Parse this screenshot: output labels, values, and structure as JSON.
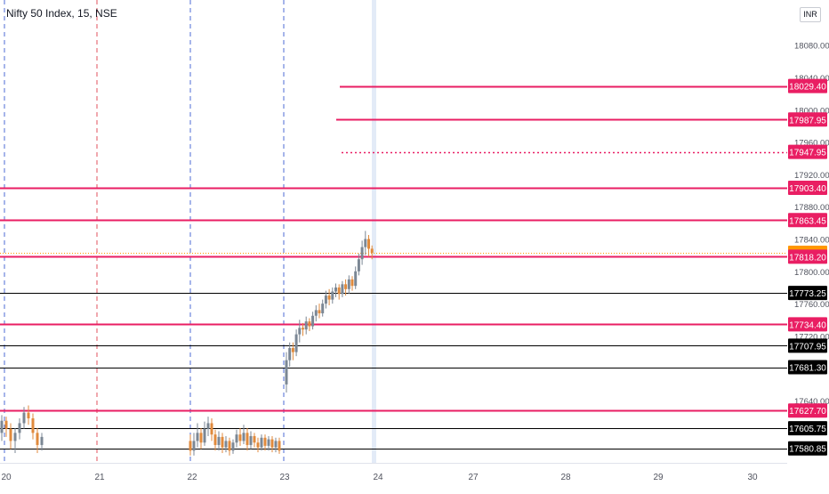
{
  "header": {
    "title": "Nifty 50 Index, 15, NSE"
  },
  "currency_button": {
    "label": "INR"
  },
  "colors": {
    "support": "#e91e63",
    "level_black": "#000000",
    "current_price": "#ff9800",
    "candle_up": "#7b8794",
    "candle_down": "#e08a3c",
    "session_line_blue": "#4d6bd6",
    "session_line_red": "#e0525d"
  },
  "chart_data": {
    "type": "candlestick",
    "title": "Nifty 50 Index, 15, NSE",
    "ylim": [
      17570,
      18120
    ],
    "y_ticks": [
      "18080.00",
      "18040.00",
      "18000.00",
      "17960.00",
      "17920.00",
      "17880.00",
      "17840.00",
      "17800.00",
      "17760.00",
      "17720.00",
      "17640.00"
    ],
    "x_ticks": [
      "20",
      "21",
      "22",
      "23",
      "24",
      "27",
      "28",
      "29",
      "30"
    ],
    "price_levels": [
      {
        "label": "18029.40",
        "value": 18029.4,
        "color": "pink",
        "style": "solid"
      },
      {
        "label": "17987.95",
        "value": 17987.95,
        "color": "pink",
        "style": "solid"
      },
      {
        "label": "17947.95",
        "value": 17947.95,
        "color": "pink",
        "style": "dotted"
      },
      {
        "label": "17903.40",
        "value": 17903.4,
        "color": "pink",
        "style": "solid"
      },
      {
        "label": "17863.45",
        "value": 17863.45,
        "color": "pink",
        "style": "solid"
      },
      {
        "label": "17822.95",
        "value": 17822.95,
        "color": "orange",
        "style": "current"
      },
      {
        "label": "17818.20",
        "value": 17818.2,
        "color": "pink",
        "style": "solid"
      },
      {
        "label": "17773.25",
        "value": 17773.25,
        "color": "black",
        "style": "solid"
      },
      {
        "label": "17734.40",
        "value": 17734.4,
        "color": "pink",
        "style": "solid"
      },
      {
        "label": "17707.95",
        "value": 17707.95,
        "color": "black",
        "style": "solid"
      },
      {
        "label": "17681.30",
        "value": 17681.3,
        "color": "black",
        "style": "solid"
      },
      {
        "label": "17627.70",
        "value": 17627.7,
        "color": "pink",
        "style": "solid"
      },
      {
        "label": "17605.75",
        "value": 17605.75,
        "color": "black",
        "style": "solid"
      },
      {
        "label": "17580.85",
        "value": 17580.85,
        "color": "black",
        "style": "solid"
      }
    ],
    "candles_day23": [
      [
        17660,
        17690,
        17650,
        17700
      ],
      [
        17690,
        17705,
        17682,
        17712
      ],
      [
        17705,
        17700,
        17690,
        17712
      ],
      [
        17700,
        17722,
        17695,
        17728
      ],
      [
        17722,
        17730,
        17712,
        17740
      ],
      [
        17730,
        17728,
        17720,
        17736
      ],
      [
        17728,
        17738,
        17722,
        17744
      ],
      [
        17738,
        17732,
        17726,
        17742
      ],
      [
        17732,
        17745,
        17728,
        17750
      ],
      [
        17745,
        17752,
        17738,
        17758
      ],
      [
        17752,
        17748,
        17742,
        17760
      ],
      [
        17748,
        17760,
        17744,
        17765
      ],
      [
        17760,
        17770,
        17754,
        17776
      ],
      [
        17770,
        17765,
        17758,
        17778
      ],
      [
        17765,
        17775,
        17760,
        17780
      ],
      [
        17775,
        17780,
        17768,
        17785
      ],
      [
        17780,
        17772,
        17765,
        17784
      ],
      [
        17772,
        17784,
        17768,
        17788
      ],
      [
        17784,
        17778,
        17770,
        17790
      ],
      [
        17778,
        17790,
        17772,
        17795
      ],
      [
        17790,
        17782,
        17776,
        17794
      ],
      [
        17782,
        17800,
        17778,
        17806
      ],
      [
        17800,
        17815,
        17795,
        17822
      ],
      [
        17815,
        17830,
        17808,
        17838
      ],
      [
        17830,
        17840,
        17820,
        17850
      ],
      [
        17840,
        17828,
        17818,
        17845
      ],
      [
        17828,
        17823,
        17815,
        17832
      ]
    ],
    "candles_day20": [
      [
        17600,
        17615,
        17590,
        17622
      ],
      [
        17615,
        17605,
        17595,
        17620
      ],
      [
        17605,
        17590,
        17580,
        17612
      ],
      [
        17590,
        17600,
        17575,
        17606
      ],
      [
        17600,
        17612,
        17592,
        17618
      ],
      [
        17612,
        17625,
        17605,
        17632
      ],
      [
        17625,
        17618,
        17610,
        17634
      ],
      [
        17618,
        17600,
        17592,
        17624
      ],
      [
        17600,
        17585,
        17575,
        17606
      ],
      [
        17585,
        17595,
        17578,
        17600
      ]
    ],
    "candles_day22": [
      [
        17590,
        17578,
        17572,
        17598
      ],
      [
        17578,
        17590,
        17572,
        17600
      ],
      [
        17590,
        17600,
        17582,
        17612
      ],
      [
        17600,
        17588,
        17580,
        17606
      ],
      [
        17588,
        17605,
        17584,
        17614
      ],
      [
        17605,
        17612,
        17596,
        17620
      ],
      [
        17612,
        17598,
        17590,
        17618
      ],
      [
        17598,
        17585,
        17578,
        17604
      ],
      [
        17585,
        17595,
        17578,
        17602
      ],
      [
        17595,
        17582,
        17575,
        17600
      ],
      [
        17582,
        17590,
        17576,
        17596
      ],
      [
        17590,
        17578,
        17572,
        17594
      ],
      [
        17578,
        17588,
        17574,
        17592
      ],
      [
        17588,
        17598,
        17582,
        17604
      ],
      [
        17598,
        17590,
        17584,
        17606
      ],
      [
        17590,
        17600,
        17586,
        17610
      ],
      [
        17600,
        17585,
        17578,
        17606
      ],
      [
        17585,
        17596,
        17580,
        17602
      ],
      [
        17596,
        17588,
        17582,
        17600
      ],
      [
        17588,
        17582,
        17576,
        17594
      ],
      [
        17582,
        17594,
        17578,
        17598
      ],
      [
        17594,
        17584,
        17578,
        17598
      ],
      [
        17584,
        17592,
        17578,
        17596
      ],
      [
        17592,
        17582,
        17576,
        17596
      ],
      [
        17582,
        17590,
        17576,
        17594
      ],
      [
        17590,
        17578,
        17574,
        17594
      ]
    ]
  }
}
